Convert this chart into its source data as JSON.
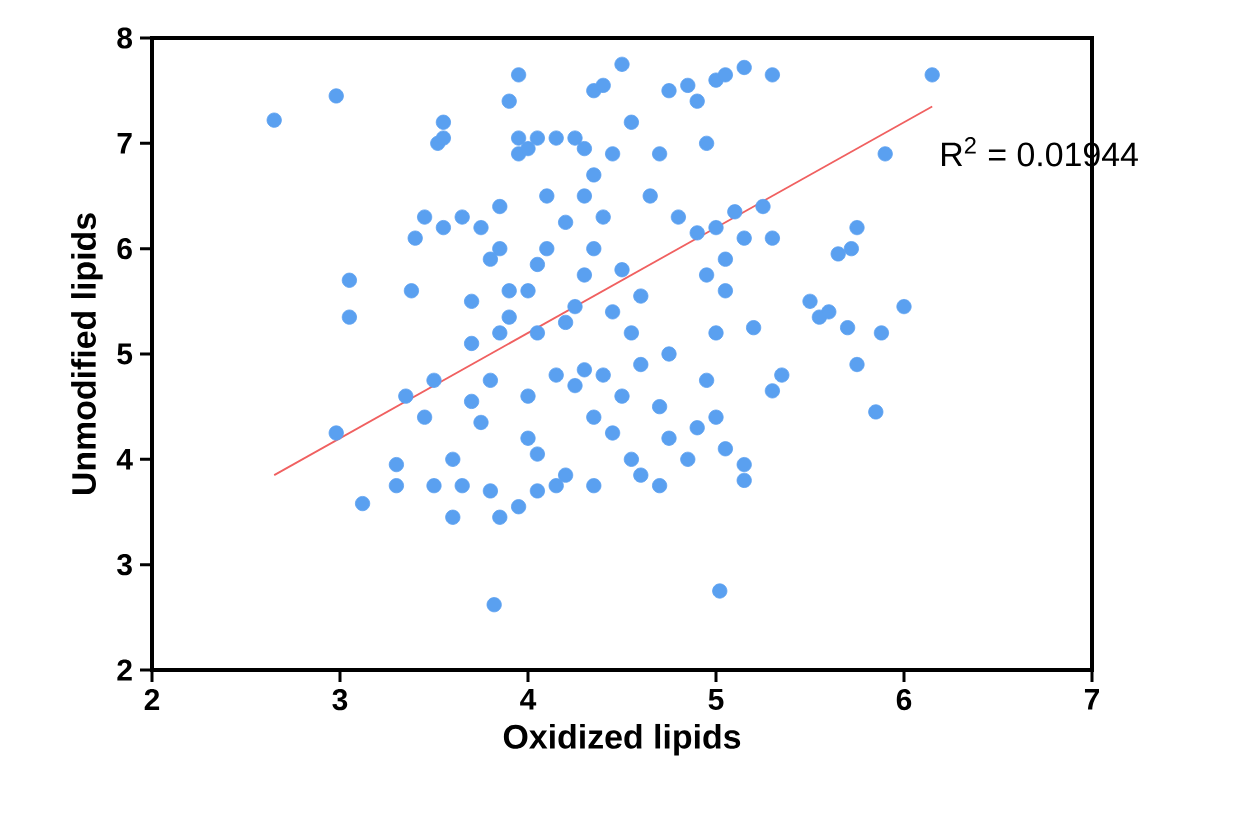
{
  "chart_data": {
    "type": "scatter",
    "xlabel": "Oxidized lipids",
    "ylabel": "Unmodified lipids",
    "xlim": [
      2,
      7
    ],
    "ylim": [
      2,
      8
    ],
    "xticks": [
      2,
      3,
      4,
      5,
      6,
      7
    ],
    "yticks": [
      2,
      3,
      4,
      5,
      6,
      7,
      8
    ],
    "grid": false,
    "annotations": [
      "R$^{2}$ = 0.01944"
    ],
    "series": [
      {
        "color": "#5aa0f0",
        "marker": "circle",
        "x": [
          2.65,
          2.98,
          3.55,
          3.52,
          3.55,
          3.05,
          3.05,
          2.98,
          3.12,
          3.3,
          3.3,
          3.35,
          3.45,
          3.5,
          3.5,
          3.6,
          3.38,
          3.4,
          3.45,
          3.55,
          3.65,
          3.7,
          3.7,
          3.6,
          3.65,
          3.7,
          3.75,
          3.8,
          3.8,
          3.85,
          3.82,
          3.85,
          3.9,
          3.9,
          3.85,
          3.85,
          3.95,
          3.95,
          3.95,
          3.9,
          4.0,
          4.05,
          4.15,
          4.25,
          4.3,
          4.05,
          4.1,
          4.2,
          4.0,
          4.05,
          4.15,
          4.0,
          4.0,
          4.05,
          4.05,
          3.95,
          4.15,
          4.2,
          4.25,
          4.3,
          4.25,
          4.3,
          4.35,
          4.3,
          4.35,
          4.35,
          4.4,
          4.5,
          4.55,
          4.45,
          4.4,
          4.5,
          4.45,
          4.4,
          4.35,
          4.35,
          4.45,
          4.55,
          4.6,
          4.5,
          4.55,
          4.6,
          4.65,
          4.7,
          4.75,
          4.85,
          4.9,
          4.95,
          4.8,
          4.9,
          4.95,
          4.75,
          4.7,
          4.75,
          4.7,
          4.85,
          4.9,
          4.95,
          5.0,
          5.05,
          5.0,
          5.05,
          5.05,
          5.0,
          5.1,
          5.0,
          5.05,
          5.15,
          5.3,
          5.25,
          5.15,
          5.3,
          5.2,
          5.3,
          5.15,
          5.15,
          5.02,
          5.55,
          5.6,
          5.7,
          5.75,
          5.72,
          5.75,
          5.65,
          5.85,
          5.88,
          5.9,
          6.0,
          6.15,
          5.5,
          5.35,
          4.6,
          4.2,
          4.1,
          3.8,
          3.75
        ],
        "values": [
          7.22,
          7.45,
          7.2,
          7.0,
          7.05,
          5.7,
          5.35,
          4.25,
          3.58,
          3.75,
          3.95,
          4.6,
          4.4,
          4.75,
          3.75,
          3.45,
          5.6,
          6.1,
          6.3,
          6.2,
          6.3,
          5.5,
          5.1,
          4.0,
          3.75,
          4.55,
          4.35,
          4.75,
          3.7,
          3.45,
          2.62,
          5.2,
          5.35,
          5.6,
          6.0,
          6.4,
          6.9,
          7.05,
          7.65,
          7.4,
          6.95,
          7.05,
          7.05,
          7.05,
          6.95,
          5.85,
          6.5,
          6.25,
          5.6,
          5.2,
          4.8,
          4.6,
          4.2,
          4.05,
          3.7,
          3.55,
          3.75,
          3.85,
          4.7,
          4.85,
          5.45,
          5.75,
          6.0,
          6.5,
          6.7,
          7.5,
          7.55,
          7.75,
          7.2,
          6.9,
          6.3,
          5.8,
          5.4,
          4.8,
          4.4,
          3.75,
          4.25,
          4.0,
          3.85,
          4.6,
          5.2,
          5.55,
          6.5,
          6.9,
          7.5,
          7.55,
          7.4,
          7.0,
          6.3,
          6.15,
          5.75,
          5.0,
          4.5,
          4.2,
          3.75,
          4.0,
          4.3,
          4.75,
          4.4,
          4.1,
          5.2,
          5.6,
          5.9,
          6.2,
          6.35,
          7.6,
          7.65,
          7.72,
          7.65,
          6.4,
          6.1,
          6.1,
          5.25,
          4.65,
          3.95,
          3.8,
          2.75,
          5.35,
          5.4,
          5.25,
          6.2,
          6.0,
          4.9,
          5.95,
          4.45,
          5.2,
          6.9,
          5.45,
          7.65,
          5.5,
          4.8,
          4.9,
          5.3,
          6.0,
          5.9,
          6.2
        ]
      },
      {
        "type": "line",
        "color": "#f06060",
        "x": [
          2.65,
          6.15
        ],
        "values": [
          3.85,
          7.35
        ],
        "marker": "none"
      }
    ]
  }
}
